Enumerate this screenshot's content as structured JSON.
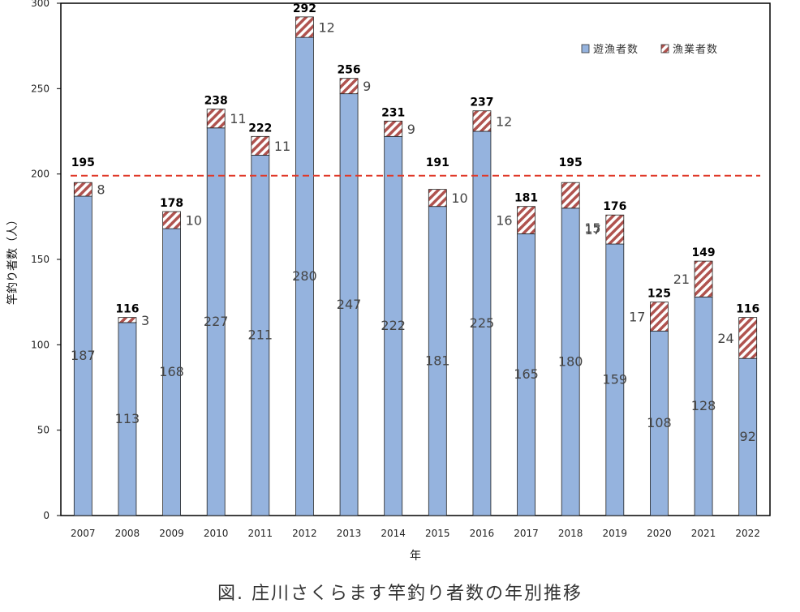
{
  "chart_data": {
    "type": "bar",
    "stacked": true,
    "categories": [
      "2007",
      "2008",
      "2009",
      "2010",
      "2011",
      "2012",
      "2013",
      "2014",
      "2015",
      "2016",
      "2017",
      "2018",
      "2019",
      "2020",
      "2021",
      "2022"
    ],
    "series": [
      {
        "name": "遊漁者数",
        "color": "#95b3de",
        "values": [
          187,
          113,
          168,
          227,
          211,
          280,
          247,
          222,
          181,
          225,
          165,
          180,
          159,
          108,
          128,
          92
        ]
      },
      {
        "name": "漁業者数",
        "color": "#b0534f",
        "pattern": "diagonal-hatch",
        "values": [
          8,
          3,
          10,
          11,
          11,
          12,
          9,
          9,
          10,
          12,
          16,
          15,
          17,
          17,
          21,
          24
        ]
      }
    ],
    "totals": [
      "195",
      "116",
      "178",
      "238",
      "222",
      "292",
      "256",
      "231",
      "191",
      "237",
      "181",
      "195",
      "176",
      "125",
      "149",
      "116"
    ],
    "reference_line": {
      "value": 199,
      "color": "#e03a2a",
      "style": "dashed"
    },
    "ylim": [
      0,
      300
    ],
    "yticks": [
      "0",
      "50",
      "100",
      "150",
      "200",
      "250",
      "300"
    ],
    "xlabel": "年",
    "ylabel": "竿釣り者数（人）",
    "legend_position": "top-right",
    "grid": false
  },
  "caption": "図. 庄川さくらます竿釣り者数の年別推移"
}
